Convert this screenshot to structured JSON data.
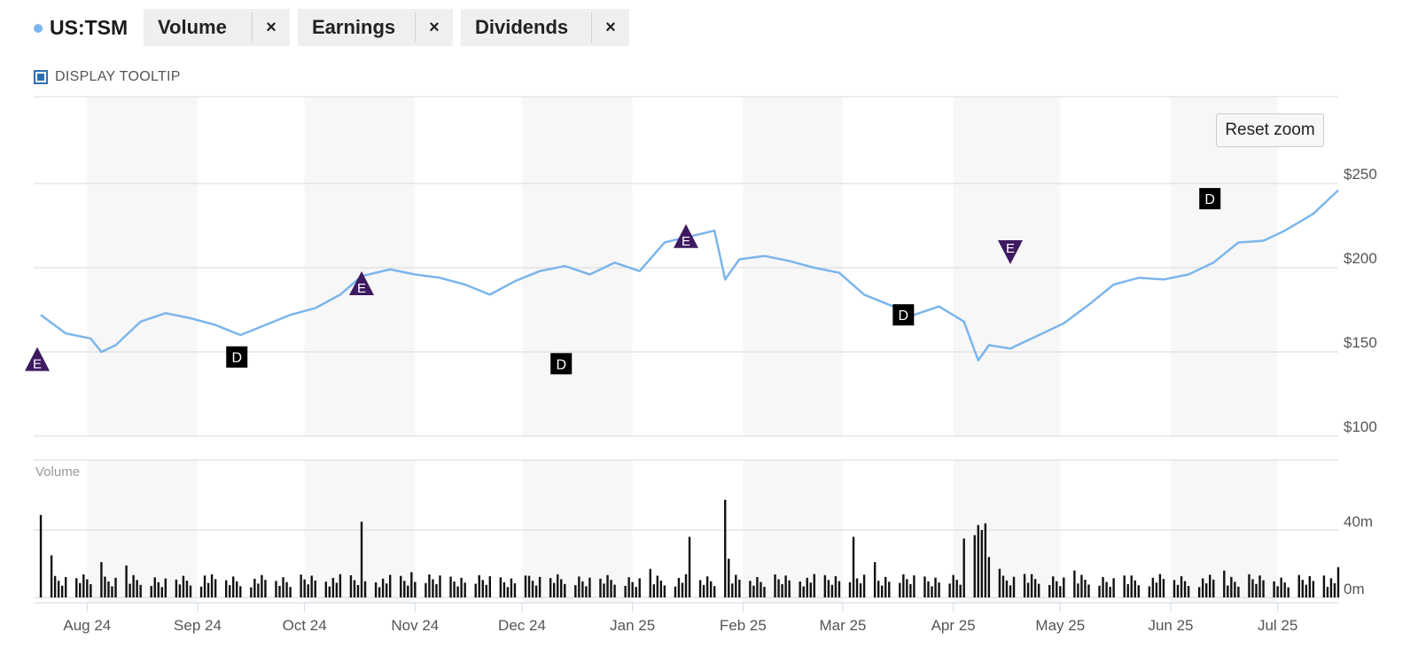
{
  "header": {
    "ticker": "US:TSM",
    "ticker_color": "#7cb5ec",
    "chips": [
      {
        "label": "Volume",
        "remove": "×"
      },
      {
        "label": "Earnings",
        "remove": "×"
      },
      {
        "label": "Dividends",
        "remove": "×"
      }
    ]
  },
  "tooltip_toggle": {
    "label": "DISPLAY TOOLTIP",
    "checked": true
  },
  "reset_zoom_label": "Reset zoom",
  "chart_data": {
    "type": "line",
    "title": "",
    "series": [
      {
        "name": "US:TSM",
        "color": "#7cb5ec",
        "x": [
          "2024-07-19",
          "2024-07-26",
          "2024-08-02",
          "2024-08-05",
          "2024-08-09",
          "2024-08-16",
          "2024-08-23",
          "2024-08-30",
          "2024-09-06",
          "2024-09-13",
          "2024-09-20",
          "2024-09-27",
          "2024-10-04",
          "2024-10-11",
          "2024-10-17",
          "2024-10-25",
          "2024-11-01",
          "2024-11-08",
          "2024-11-15",
          "2024-11-22",
          "2024-11-29",
          "2024-12-06",
          "2024-12-13",
          "2024-12-20",
          "2024-12-27",
          "2025-01-03",
          "2025-01-10",
          "2025-01-16",
          "2025-01-24",
          "2025-01-27",
          "2025-01-31",
          "2025-02-07",
          "2025-02-14",
          "2025-02-21",
          "2025-02-28",
          "2025-03-07",
          "2025-03-14",
          "2025-03-21",
          "2025-03-28",
          "2025-04-04",
          "2025-04-08",
          "2025-04-11",
          "2025-04-17",
          "2025-04-25",
          "2025-05-02",
          "2025-05-09",
          "2025-05-16",
          "2025-05-23",
          "2025-05-30",
          "2025-06-06",
          "2025-06-13",
          "2025-06-20",
          "2025-06-27",
          "2025-07-03",
          "2025-07-11",
          "2025-07-18"
        ],
        "values": [
          172,
          161,
          158,
          150,
          154,
          168,
          173,
          170,
          166,
          160,
          166,
          172,
          176,
          184,
          195,
          199,
          196,
          194,
          190,
          184,
          192,
          198,
          201,
          196,
          203,
          198,
          215,
          218,
          222,
          193,
          205,
          207,
          204,
          200,
          197,
          184,
          178,
          172,
          177,
          168,
          145,
          154,
          152,
          160,
          167,
          178,
          190,
          194,
          193,
          196,
          203,
          215,
          216,
          222,
          232,
          246
        ]
      }
    ],
    "volume": {
      "name": "Volume",
      "unit_note": "millions",
      "x": [
        "2024-07-19",
        "2024-07-22",
        "2024-08-05",
        "2024-08-12",
        "2024-09-03",
        "2024-10-17",
        "2024-10-31",
        "2024-12-02",
        "2025-01-06",
        "2025-01-17",
        "2025-01-27",
        "2025-01-28",
        "2025-03-04",
        "2025-03-10",
        "2025-04-04",
        "2025-04-07",
        "2025-04-08",
        "2025-04-09",
        "2025-04-10",
        "2025-04-11",
        "2025-04-14",
        "2025-04-21",
        "2025-05-05",
        "2025-05-19",
        "2025-06-16",
        "2025-07-14",
        "2025-07-18"
      ],
      "values": [
        49,
        25,
        21,
        19,
        13,
        45,
        15,
        13,
        17,
        36,
        58,
        23,
        36,
        21,
        35,
        37,
        43,
        40,
        44,
        24,
        17,
        14,
        16,
        13,
        16,
        13,
        18
      ]
    },
    "earnings_markers": [
      {
        "date": "2024-07-18",
        "value": 145,
        "label": "E",
        "direction": "up"
      },
      {
        "date": "2024-10-17",
        "value": 190,
        "label": "E",
        "direction": "up"
      },
      {
        "date": "2025-01-16",
        "value": 218,
        "label": "E",
        "direction": "up"
      },
      {
        "date": "2025-04-17",
        "value": 210,
        "label": "E",
        "direction": "down"
      }
    ],
    "dividend_markers": [
      {
        "date": "2024-09-12",
        "value": "D"
      },
      {
        "date": "2024-12-12",
        "value": "D"
      },
      {
        "date": "2025-03-18",
        "value": "D"
      },
      {
        "date": "2025-06-12",
        "value": "D"
      }
    ],
    "x_tick_labels": [
      "Aug 24",
      "Sep 24",
      "Oct 24",
      "Nov 24",
      "Dec 24",
      "Jan 25",
      "Feb 25",
      "Mar 25",
      "Apr 25",
      "May 25",
      "Jun 25",
      "Jul 25"
    ],
    "y_tick_labels": [
      "$250",
      "$200",
      "$150",
      "$100"
    ],
    "y_ticks": [
      250,
      200,
      150,
      100
    ],
    "ylim": [
      100,
      300
    ],
    "volume_label": "Volume",
    "volume_tick_labels": [
      "40m",
      "0m"
    ],
    "volume_ticks": [
      40,
      0
    ],
    "volume_ylim": [
      0,
      80
    ],
    "grid": true,
    "bar_color": "#111111",
    "band_color": "#f7f7f7",
    "earnings_color": "#3d1a5f"
  }
}
